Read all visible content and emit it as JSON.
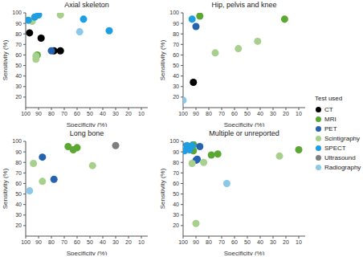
{
  "legend_title": "Test used",
  "chart_data": [
    {
      "type": "scatter",
      "title": "Axial skeleton",
      "x_label": "Specificity (%)",
      "y_label": "Sensitivity (%)",
      "xlim": [
        5,
        100
      ],
      "ylim": [
        10,
        100
      ],
      "xticks": [
        100,
        90,
        80,
        70,
        60,
        50,
        40,
        30,
        20,
        10
      ],
      "yticks": [
        20,
        30,
        40,
        50,
        60,
        70,
        80,
        90,
        100
      ],
      "grid": false,
      "legend": "right",
      "series": [
        {
          "name": "CT",
          "color": "#000000",
          "marker": "circle",
          "x": [
            97,
            88,
            78,
            73
          ],
          "y": [
            81,
            76,
            64,
            64
          ]
        },
        {
          "name": "MRI",
          "color": "#5aa832",
          "marker": "circle",
          "x": [
            91
          ],
          "y": [
            60
          ]
        },
        {
          "name": "PET",
          "color": "#2563b0",
          "marker": "circle",
          "x": [
            80
          ],
          "y": [
            64
          ]
        },
        {
          "name": "Scintigraphy",
          "color": "#a8d08d",
          "marker": "circle",
          "x": [
            95,
            92,
            92,
            73
          ],
          "y": [
            92,
            59,
            56,
            98
          ]
        },
        {
          "name": "SPECT",
          "color": "#1f9ee0",
          "marker": "circle",
          "x": [
            98,
            93,
            90,
            55,
            35
          ],
          "y": [
            93,
            96,
            98,
            94,
            83
          ]
        },
        {
          "name": "Ultrasound",
          "color": "#7f7f7f",
          "marker": "circle",
          "x": [],
          "y": []
        },
        {
          "name": "Radiography",
          "color": "#8dc8e8",
          "marker": "circle",
          "x": [
            58
          ],
          "y": [
            82
          ]
        }
      ]
    },
    {
      "type": "scatter",
      "title": "Hip, pelvis and knee",
      "x_label": "Specificity (%)",
      "y_label": "Sensitivity (%)",
      "xlim": [
        5,
        100
      ],
      "ylim": [
        10,
        100
      ],
      "xticks": [
        100,
        90,
        80,
        70,
        60,
        50,
        40,
        30,
        20,
        10
      ],
      "yticks": [
        20,
        30,
        40,
        50,
        60,
        70,
        80,
        90,
        100
      ],
      "grid": false,
      "legend": "right",
      "series": [
        {
          "name": "CT",
          "color": "#000000",
          "marker": "circle",
          "x": [
            92
          ],
          "y": [
            34
          ]
        },
        {
          "name": "MRI",
          "color": "#5aa832",
          "marker": "circle",
          "x": [
            87,
            21
          ],
          "y": [
            97,
            94
          ]
        },
        {
          "name": "PET",
          "color": "#2563b0",
          "marker": "circle",
          "x": [
            90
          ],
          "y": [
            87
          ]
        },
        {
          "name": "Scintigraphy",
          "color": "#a8d08d",
          "marker": "circle",
          "x": [
            75,
            57,
            42
          ],
          "y": [
            62,
            66,
            73
          ]
        },
        {
          "name": "SPECT",
          "color": "#1f9ee0",
          "marker": "circle",
          "x": [
            93
          ],
          "y": [
            94
          ]
        },
        {
          "name": "Ultrasound",
          "color": "#7f7f7f",
          "marker": "circle",
          "x": [],
          "y": []
        },
        {
          "name": "Radiography",
          "color": "#8dc8e8",
          "marker": "circle",
          "x": [
            100
          ],
          "y": [
            17
          ]
        }
      ]
    },
    {
      "type": "scatter",
      "title": "Long bone",
      "x_label": "Specificity (%)",
      "y_label": "Sensitivity (%)",
      "xlim": [
        5,
        100
      ],
      "ylim": [
        10,
        100
      ],
      "xticks": [
        100,
        90,
        80,
        70,
        60,
        50,
        40,
        30,
        20,
        10
      ],
      "yticks": [
        20,
        30,
        40,
        50,
        60,
        70,
        80,
        90,
        100
      ],
      "grid": false,
      "legend": "right",
      "series": [
        {
          "name": "CT",
          "color": "#000000",
          "marker": "circle",
          "x": [],
          "y": []
        },
        {
          "name": "MRI",
          "color": "#5aa832",
          "marker": "circle",
          "x": [
            67,
            63,
            60
          ],
          "y": [
            95,
            92,
            94
          ]
        },
        {
          "name": "PET",
          "color": "#2563b0",
          "marker": "circle",
          "x": [
            87,
            78
          ],
          "y": [
            85,
            64
          ]
        },
        {
          "name": "Scintigraphy",
          "color": "#a8d08d",
          "marker": "circle",
          "x": [
            94,
            87,
            48
          ],
          "y": [
            79,
            62,
            77
          ]
        },
        {
          "name": "SPECT",
          "color": "#1f9ee0",
          "marker": "circle",
          "x": [],
          "y": []
        },
        {
          "name": "Ultrasound",
          "color": "#7f7f7f",
          "marker": "circle",
          "x": [
            30
          ],
          "y": [
            96
          ]
        },
        {
          "name": "Radiography",
          "color": "#8dc8e8",
          "marker": "circle",
          "x": [
            97
          ],
          "y": [
            53
          ]
        }
      ]
    },
    {
      "type": "scatter",
      "title": "Multiple or unreported",
      "x_label": "Specificity (%)",
      "y_label": "Sensitivity (%)",
      "xlim": [
        5,
        100
      ],
      "ylim": [
        10,
        100
      ],
      "xticks": [
        100,
        90,
        80,
        70,
        60,
        50,
        40,
        30,
        20,
        10
      ],
      "yticks": [
        20,
        30,
        40,
        50,
        60,
        70,
        80,
        90,
        100
      ],
      "grid": false,
      "legend": "right",
      "series": [
        {
          "name": "CT",
          "color": "#000000",
          "marker": "circle",
          "x": [],
          "y": []
        },
        {
          "name": "MRI",
          "color": "#5aa832",
          "marker": "circle",
          "x": [
            92,
            92,
            78,
            73,
            10
          ],
          "y": [
            97,
            91,
            87,
            88,
            92
          ]
        },
        {
          "name": "PET",
          "color": "#2563b0",
          "marker": "circle",
          "x": [
            98,
            96,
            90,
            89,
            87
          ],
          "y": [
            95,
            94,
            82,
            83,
            95
          ]
        },
        {
          "name": "Scintigraphy",
          "color": "#a8d08d",
          "marker": "circle",
          "x": [
            98,
            93,
            90,
            84,
            25
          ],
          "y": [
            93,
            79,
            22,
            80,
            86
          ]
        },
        {
          "name": "SPECT",
          "color": "#1f9ee0",
          "marker": "circle",
          "x": [
            99,
            97,
            95,
            93
          ],
          "y": [
            91,
            96,
            92,
            96
          ]
        },
        {
          "name": "Ultrasound",
          "color": "#7f7f7f",
          "marker": "circle",
          "x": [],
          "y": []
        },
        {
          "name": "Radiography",
          "color": "#8dc8e8",
          "marker": "circle",
          "x": [
            66
          ],
          "y": [
            60
          ]
        }
      ]
    }
  ]
}
